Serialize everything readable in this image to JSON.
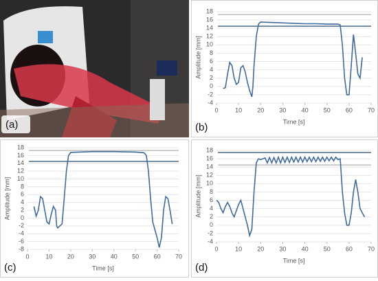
{
  "photo": {
    "label": "(a)"
  },
  "chart_data": [
    {
      "type": "line",
      "label": "(b)",
      "ylabel": "Amplitude [mm]",
      "xlabel": "Time [s]",
      "color": "#3d6a9a",
      "grid": true,
      "xlim": [
        0,
        70
      ],
      "xticks": [
        0,
        10,
        20,
        30,
        40,
        50,
        60,
        70
      ],
      "ylim": [
        -4,
        18
      ],
      "yticks": [
        -4,
        -2,
        0,
        2,
        4,
        6,
        8,
        10,
        12,
        14,
        16,
        18
      ],
      "reference_lines": [
        {
          "value": 17.3,
          "color": "#bdbdbd"
        },
        {
          "value": 14.5,
          "color": "#4a6a8a"
        }
      ],
      "x": [
        3,
        4,
        5,
        6,
        7,
        8,
        9,
        10,
        11,
        12,
        13,
        14,
        15,
        16,
        16.5,
        17,
        18,
        19,
        20,
        25,
        30,
        35,
        40,
        45,
        50,
        55,
        56,
        57,
        58,
        59,
        60,
        61,
        62,
        63,
        64,
        65,
        66
      ],
      "values": [
        -0.5,
        -0.3,
        3,
        5.8,
        5,
        2,
        0.5,
        1,
        4.5,
        5,
        3.5,
        1,
        -1,
        -2.5,
        0,
        5,
        12,
        15,
        15.5,
        15.4,
        15.3,
        15.2,
        15.1,
        15.1,
        15,
        15,
        14.8,
        10,
        2,
        -2,
        -2,
        5,
        12.5,
        8,
        3,
        2,
        7
      ]
    },
    {
      "type": "line",
      "label": "(c)",
      "ylabel": "Amplitude [mm]",
      "xlabel": "Time [s]",
      "color": "#3d6a9a",
      "grid": true,
      "xlim": [
        0,
        70
      ],
      "xticks": [
        0,
        10,
        20,
        30,
        40,
        50,
        60,
        70
      ],
      "ylim": [
        -8,
        18
      ],
      "yticks": [
        -8,
        -6,
        -4,
        -2,
        0,
        2,
        4,
        6,
        8,
        10,
        12,
        14,
        16,
        18
      ],
      "reference_lines": [
        {
          "value": 17.3,
          "color": "#bdbdbd"
        },
        {
          "value": 14.5,
          "color": "#4a6a8a"
        }
      ],
      "x": [
        3,
        4,
        5,
        6,
        7,
        8,
        9,
        10,
        11,
        12,
        13,
        13.5,
        14,
        15,
        16,
        17,
        18,
        19,
        20,
        30,
        40,
        50,
        54,
        55,
        56,
        57,
        58,
        59,
        60,
        61,
        62,
        63,
        64,
        65,
        66,
        67
      ],
      "values": [
        3,
        0.5,
        2,
        5.5,
        5,
        2,
        -1,
        -1.5,
        1,
        3,
        2,
        -2,
        -2.5,
        -2,
        -1.5,
        5,
        12,
        16,
        16.8,
        17,
        17,
        16.9,
        16.7,
        16,
        12,
        5,
        -1,
        -3,
        -5,
        -7.5,
        -5,
        2,
        5.5,
        5,
        2,
        -1.5
      ]
    },
    {
      "type": "line",
      "label": "(d)",
      "ylabel": "Amplitude [mm]",
      "xlabel": "Time [s]",
      "color": "#3d6a9a",
      "grid": true,
      "xlim": [
        0,
        70
      ],
      "xticks": [
        0,
        10,
        20,
        30,
        40,
        50,
        60,
        70
      ],
      "ylim": [
        -4,
        18
      ],
      "yticks": [
        -4,
        -2,
        0,
        2,
        4,
        6,
        8,
        10,
        12,
        14,
        16,
        18
      ],
      "reference_lines": [
        {
          "value": 17.5,
          "color": "#4a6a8a"
        },
        {
          "value": 14.5,
          "color": "#bdbdbd"
        }
      ],
      "x": [
        0,
        1,
        2,
        3,
        4,
        5,
        6,
        7,
        8,
        9,
        10,
        11,
        12,
        13,
        14,
        15,
        16,
        17,
        18,
        19,
        20,
        22,
        23,
        24,
        25,
        26,
        27,
        28,
        29,
        30,
        31,
        32,
        33,
        34,
        35,
        36,
        37,
        38,
        39,
        40,
        41,
        42,
        43,
        44,
        45,
        46,
        47,
        48,
        49,
        50,
        51,
        52,
        53,
        54,
        55,
        56,
        57,
        58,
        59,
        60,
        61,
        62,
        63,
        64,
        65,
        66,
        67
      ],
      "values": [
        6,
        5.5,
        4,
        3,
        4.5,
        5.5,
        4.5,
        3,
        2,
        3.5,
        5,
        6,
        4,
        2,
        0,
        -2.5,
        -1,
        8,
        15,
        16,
        15.8,
        16.2,
        15,
        16.3,
        15,
        16.3,
        15,
        16.4,
        15,
        16.4,
        15.1,
        16.4,
        15.1,
        16.4,
        15.2,
        16.4,
        15.2,
        16.4,
        15.2,
        16.4,
        15.3,
        16.4,
        15.3,
        16.4,
        15.3,
        16.4,
        15.4,
        16.4,
        15.4,
        16.4,
        15.5,
        16.4,
        15.5,
        16.4,
        15.8,
        16,
        8,
        3,
        0,
        0,
        3,
        8,
        11,
        8,
        4,
        3,
        2
      ]
    }
  ]
}
